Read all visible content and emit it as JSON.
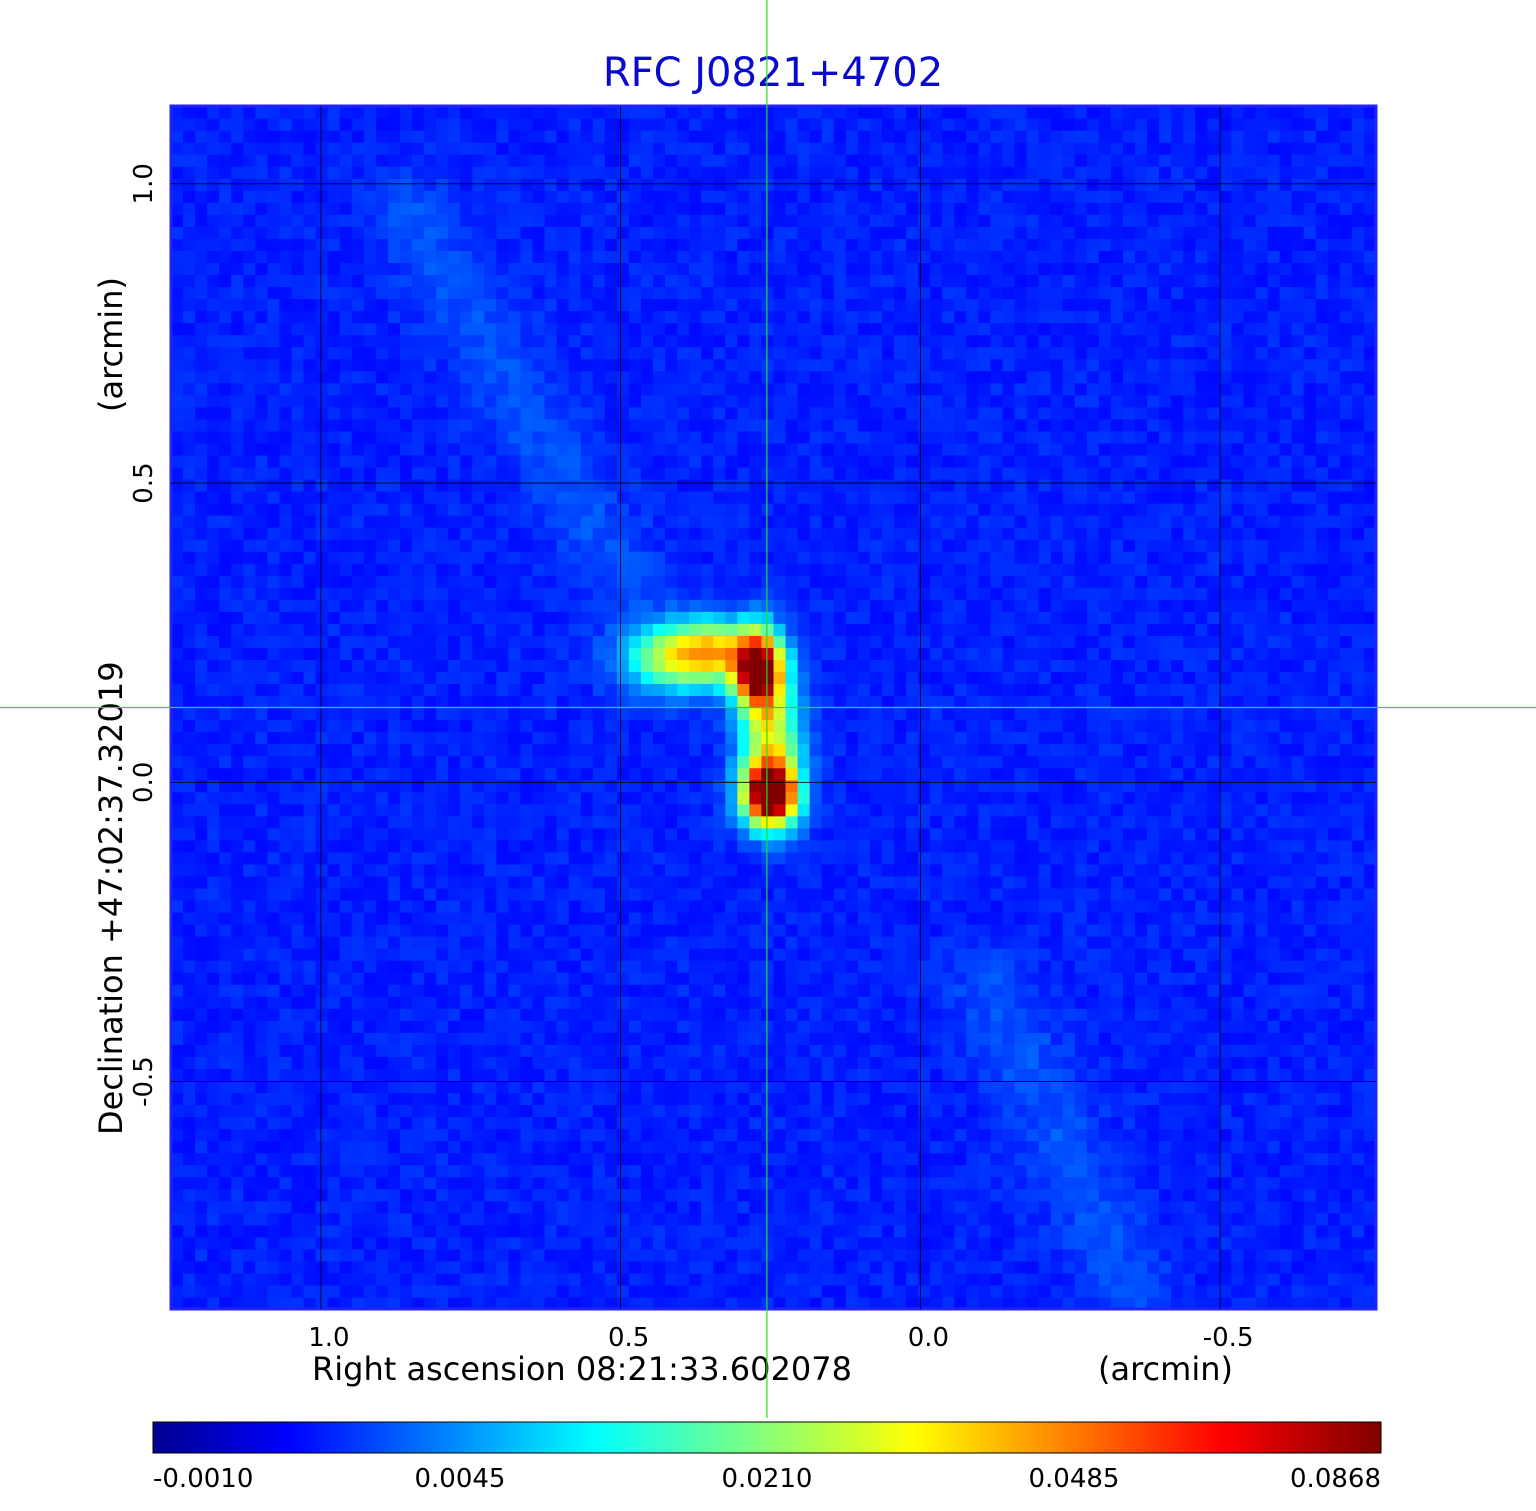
{
  "chart_data": {
    "type": "heatmap",
    "title": "RFC J0821+4702",
    "xlabel": "Right ascension  08:21:33.602078",
    "xunit": "(arcmin)",
    "ylabel": "Declination  +47:02:37.32019",
    "yunit": "(arcmin)",
    "xlim": [
      1.25,
      -0.76
    ],
    "ylim": [
      -0.88,
      1.13
    ],
    "x_ticks": [
      {
        "value": 1.0,
        "label": "1.0"
      },
      {
        "value": 0.5,
        "label": "0.5"
      },
      {
        "value": 0.0,
        "label": "0.0"
      },
      {
        "value": -0.5,
        "label": "-0.5"
      }
    ],
    "y_ticks": [
      {
        "value": 1.0,
        "label": "1.0"
      },
      {
        "value": 0.5,
        "label": "0.5"
      },
      {
        "value": 0.0,
        "label": "0.0"
      },
      {
        "value": -0.5,
        "label": "-0.5"
      }
    ],
    "grid": true,
    "crosshair": {
      "x": 0.256,
      "y": 0.125,
      "color": "#22dd22"
    },
    "colormap": "jet",
    "colorbar": {
      "position": "bottom",
      "ticks": [
        {
          "frac": 0.0,
          "label": "-0.0010"
        },
        {
          "frac": 0.25,
          "label": "0.0045"
        },
        {
          "frac": 0.5,
          "label": "0.0210"
        },
        {
          "frac": 0.75,
          "label": "0.0485"
        },
        {
          "frac": 1.0,
          "label": "0.0868"
        }
      ]
    },
    "background_level": 0.14,
    "components": [
      {
        "x": 0.27,
        "y": 0.19,
        "sigma_x": 0.028,
        "sigma_y": 0.045,
        "peak": 0.86
      },
      {
        "x": 0.25,
        "y": -0.02,
        "sigma_x": 0.032,
        "sigma_y": 0.038,
        "peak": 0.96
      },
      {
        "x": 0.25,
        "y": 0.08,
        "sigma_x": 0.035,
        "sigma_y": 0.07,
        "peak": 0.42
      },
      {
        "x": 0.41,
        "y": 0.21,
        "sigma_x": 0.06,
        "sigma_y": 0.04,
        "peak": 0.4
      },
      {
        "x": 0.34,
        "y": 0.22,
        "sigma_x": 0.05,
        "sigma_y": 0.035,
        "peak": 0.35
      }
    ],
    "diffuse_streaks": [
      {
        "from": [
          0.85,
          0.95
        ],
        "to": [
          0.5,
          0.35
        ],
        "width": 0.05,
        "level": 0.05
      },
      {
        "from": [
          -0.12,
          -0.35
        ],
        "to": [
          -0.35,
          -0.85
        ],
        "width": 0.05,
        "level": 0.05
      }
    ]
  }
}
